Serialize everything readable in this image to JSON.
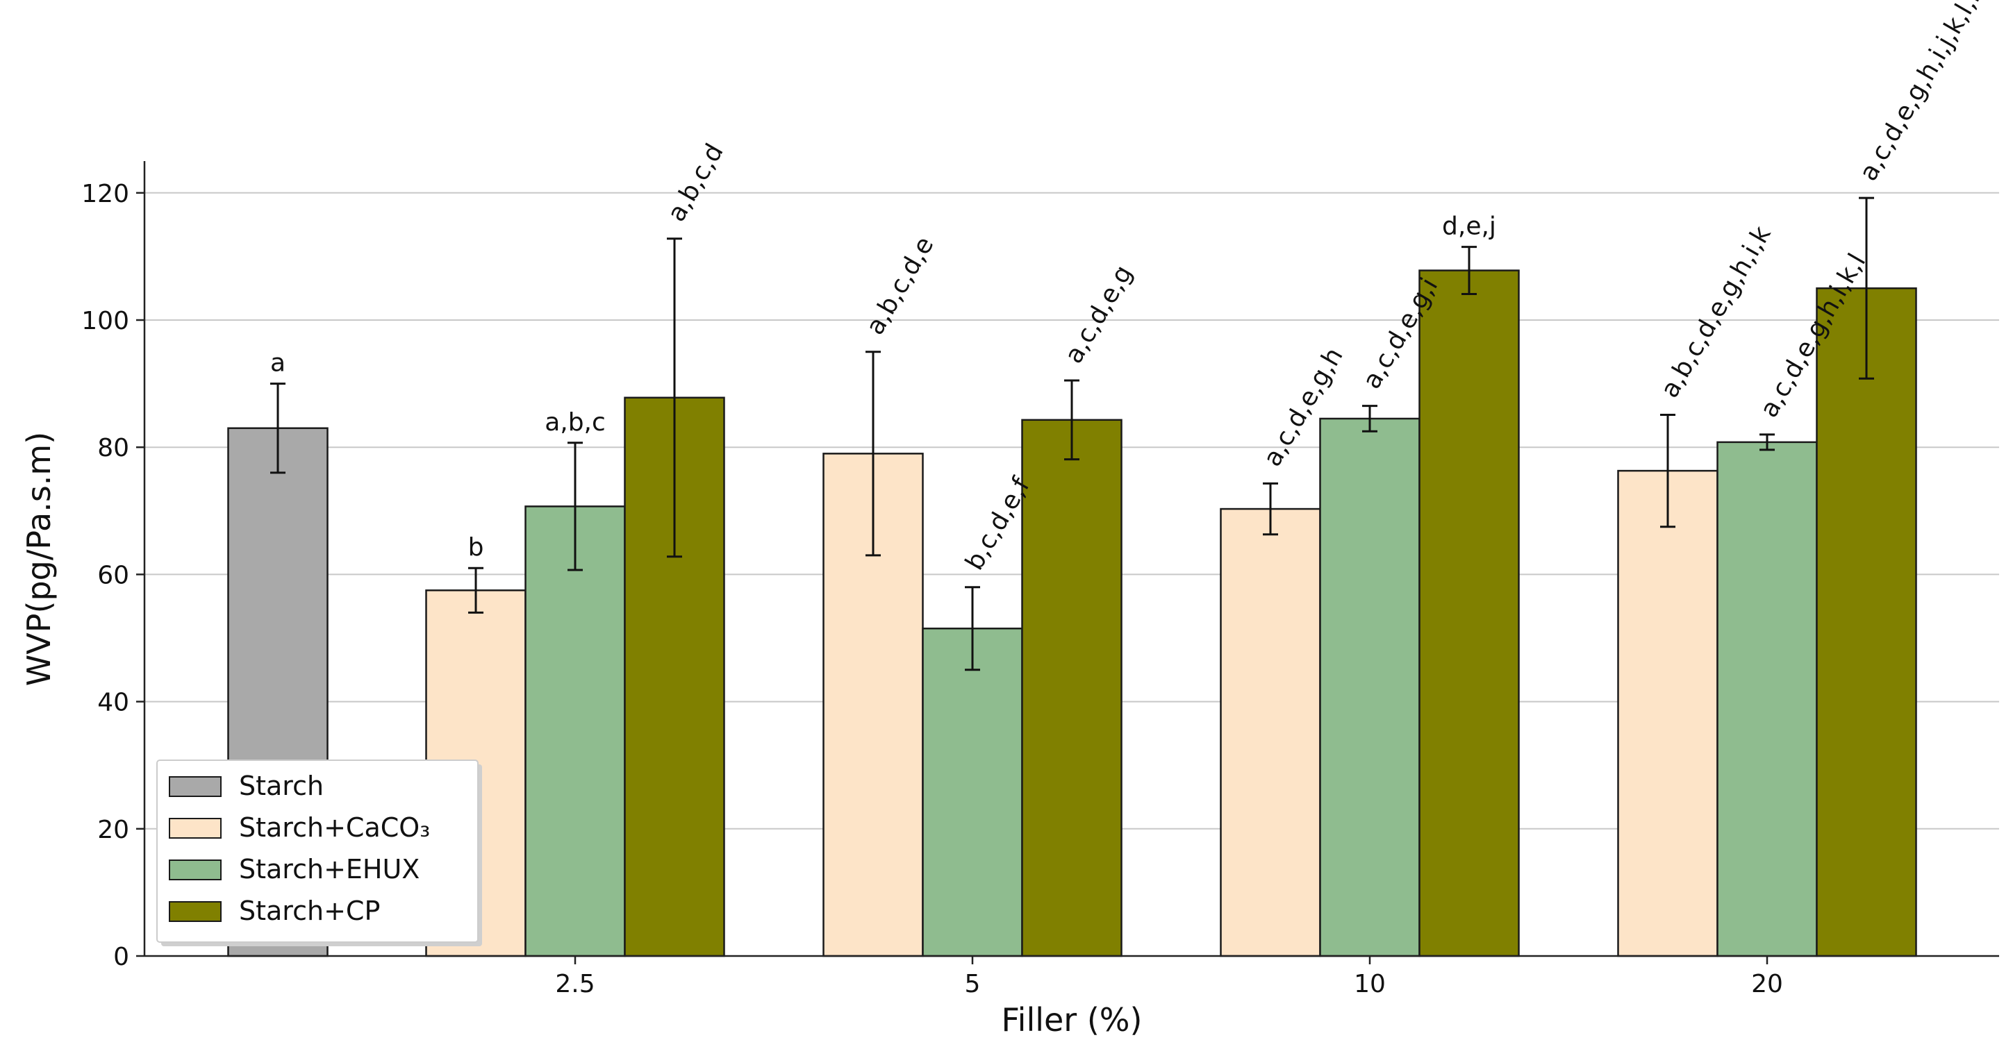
{
  "chart_data": {
    "type": "bar",
    "title": "",
    "xlabel": "Filler (%)",
    "ylabel": "WVP(pg/Pa.s.m)",
    "ylim": [
      0,
      125
    ],
    "yticks": [
      "0",
      "20",
      "40",
      "60",
      "80",
      "100",
      "120"
    ],
    "categories": [
      "2.5",
      "5",
      "10",
      "20"
    ],
    "grid": "horizontal",
    "legend_position": "bottom-left",
    "control": {
      "name": "Starch",
      "value": 83,
      "error": 7,
      "label": "a",
      "color": "#a9a9a9"
    },
    "series": [
      {
        "name": "Starch+CaCO₃",
        "color": "#fde4c8",
        "values": [
          57.5,
          79,
          70.3,
          76.3
        ],
        "errors": [
          3.5,
          16,
          4,
          8.8
        ],
        "labels": [
          "b",
          "a,b,c,d,e",
          "a,c,d,e,g,h",
          "a,b,c,d,e,g,h,i,k"
        ]
      },
      {
        "name": "Starch+EHUX",
        "color": "#8fbc8f",
        "values": [
          70.7,
          51.5,
          84.5,
          80.8
        ],
        "errors": [
          10,
          6.5,
          2,
          1.2
        ],
        "labels": [
          "a,b,c",
          "b,c,d,e,f",
          "a,c,d,e,g,i",
          "a,c,d,e,g,h,i,k,l"
        ]
      },
      {
        "name": "Starch+CP",
        "color": "#808000",
        "values": [
          87.8,
          84.3,
          107.8,
          105
        ],
        "errors": [
          25,
          6.2,
          3.7,
          14.2
        ],
        "labels": [
          "a,b,c,d",
          "a,c,d,e,g",
          "d,e,j",
          "a,c,d,e,g,h,i,j,k,l,m"
        ]
      }
    ]
  }
}
